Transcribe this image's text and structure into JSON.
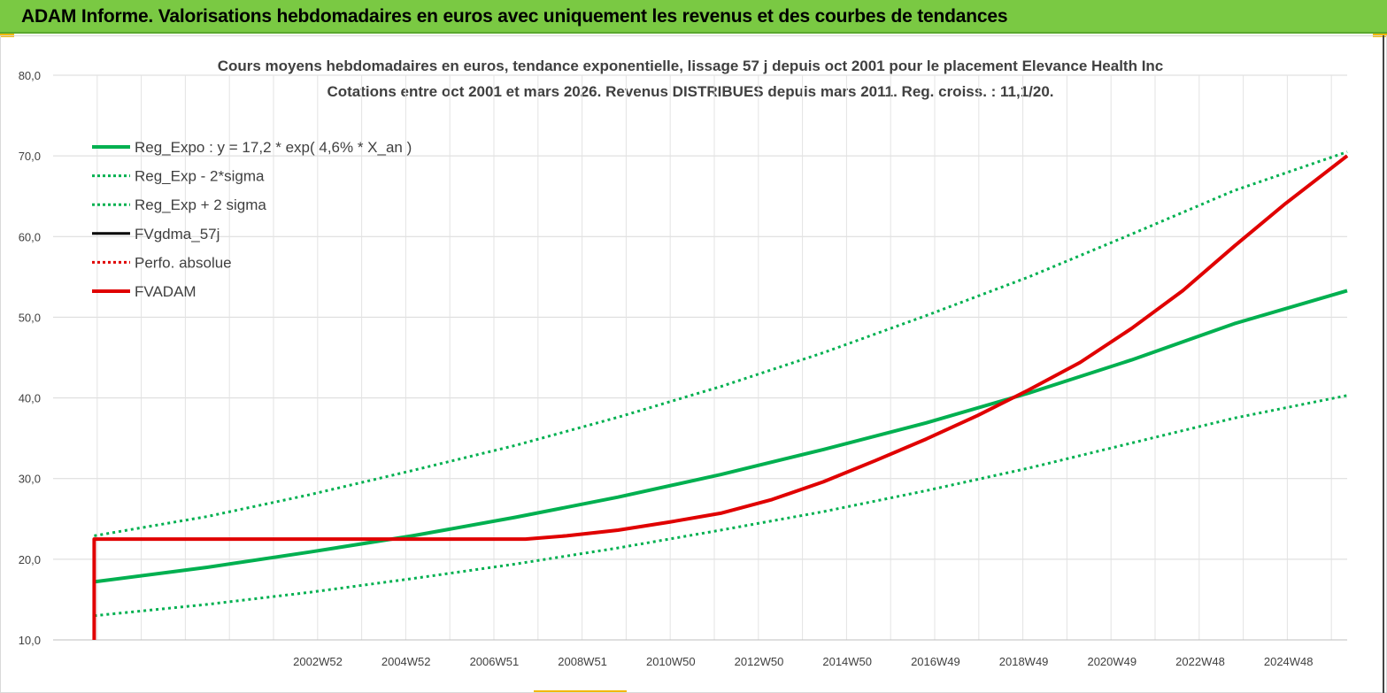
{
  "header": {
    "title": "ADAM Informe. Valorisations hebdomadaires en euros avec uniquement les revenus et des courbes de tendances"
  },
  "chart_data": {
    "type": "line",
    "title": "Cours moyens hebdomadaires en euros, tendance exponentielle, lissage 57 j depuis oct 2001 pour le placement Elevance Health Inc",
    "subtitle": "Cotations entre oct 2001 et mars 2026. Revenus DISTRIBUES depuis mars 2011. Reg. croiss. : 11,1/20.",
    "xlabel": "",
    "ylabel": "",
    "ylim": [
      10,
      80
    ],
    "xlim": [
      2001.0,
      2026.2
    ],
    "y_ticks": [
      "80,0",
      "70,0",
      "60,0",
      "50,0",
      "40,0",
      "30,0",
      "20,0",
      "10,0"
    ],
    "x_tick_labels": [
      "2002W52",
      "2004W52",
      "2006W51",
      "2008W51",
      "2010W50",
      "2012W50",
      "2014W50",
      "2016W49",
      "2018W49",
      "2020W49",
      "2022W48",
      "2024W48"
    ],
    "grid": true,
    "legend_position": "top-left",
    "series": [
      {
        "name": "Reg_Expo : y = 17,2 * exp( 4,6% *  X_an )",
        "color": "#00b050",
        "style": "solid-thick",
        "x": [
          2001.8,
          2004,
          2006,
          2008,
          2010,
          2012,
          2014,
          2016,
          2018,
          2020,
          2022,
          2024,
          2026.2
        ],
        "values": [
          17.2,
          19.0,
          20.9,
          22.9,
          25.2,
          27.7,
          30.5,
          33.6,
          36.9,
          40.6,
          44.7,
          49.2,
          53.3
        ]
      },
      {
        "name": "Reg_Exp - 2*sigma",
        "color": "#00b050",
        "style": "dotted",
        "x": [
          2001.8,
          2004,
          2006,
          2008,
          2010,
          2012,
          2014,
          2016,
          2018,
          2020,
          2022,
          2024,
          2026.2
        ],
        "values": [
          13.0,
          14.4,
          15.9,
          17.6,
          19.4,
          21.4,
          23.6,
          25.9,
          28.5,
          31.3,
          34.4,
          37.5,
          40.3
        ]
      },
      {
        "name": "Reg_Exp + 2 sigma",
        "color": "#00b050",
        "style": "dotted",
        "x": [
          2001.8,
          2004,
          2006,
          2008,
          2010,
          2012,
          2014,
          2016,
          2018,
          2020,
          2022,
          2024,
          2026.2
        ],
        "values": [
          22.9,
          25.3,
          28.0,
          31.0,
          34.1,
          37.6,
          41.4,
          45.6,
          50.2,
          55.0,
          60.3,
          65.7,
          70.5
        ]
      },
      {
        "name": "FVgdma_57j",
        "color": "#000000",
        "style": "solid",
        "x": [
          2010.2,
          2011,
          2012,
          2013,
          2014,
          2015,
          2016,
          2017,
          2018,
          2019,
          2020,
          2021,
          2022,
          2023,
          2024,
          2025,
          2026.2
        ],
        "values": [
          22.5,
          22.9,
          23.6,
          24.6,
          25.7,
          27.4,
          29.6,
          32.2,
          34.9,
          37.8,
          41.0,
          44.4,
          48.6,
          53.3,
          58.8,
          64.1,
          70.0
        ]
      },
      {
        "name": "Perfo. absolue",
        "color": "#e00000",
        "style": "dotted",
        "x": [],
        "values": []
      },
      {
        "name": "FVADAM",
        "color": "#e00000",
        "style": "solid-thick",
        "x": [
          2001.8,
          2001.8,
          2010.2,
          2011,
          2012,
          2013,
          2014,
          2015,
          2016,
          2017,
          2018,
          2019,
          2020,
          2021,
          2022,
          2023,
          2024,
          2025,
          2026.2
        ],
        "values": [
          10.0,
          22.5,
          22.5,
          22.9,
          23.6,
          24.6,
          25.7,
          27.4,
          29.6,
          32.2,
          34.9,
          37.8,
          41.0,
          44.4,
          48.6,
          53.3,
          58.8,
          64.1,
          70.0
        ]
      }
    ]
  }
}
